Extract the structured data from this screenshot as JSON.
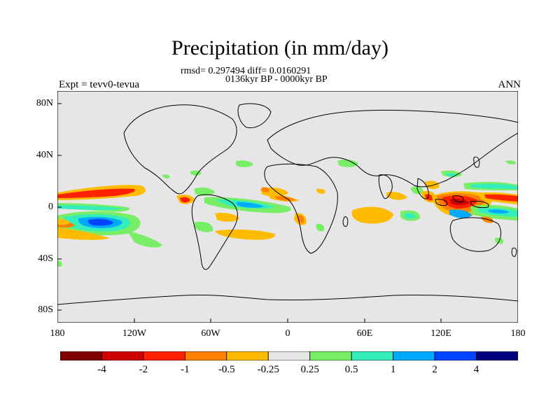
{
  "title": "Precipitation (in mm/day)",
  "subtitle_stats": "rmsd= 0.297494  diff= 0.0160291",
  "subtitle_period": "0136kyr BP - 0000kyr BP",
  "experiment": "Expt = tevv0-tevua",
  "season": "ANN",
  "lat_labels": [
    "80N",
    "40N",
    "0",
    "40S",
    "80S"
  ],
  "lon_labels": [
    "180",
    "120W",
    "60W",
    "0",
    "60E",
    "120E",
    "180"
  ],
  "colorbar": {
    "colors": [
      "#800000",
      "#cc0000",
      "#ff2200",
      "#ff7f00",
      "#ffbb00",
      "#e6e6e6",
      "#77ee66",
      "#33eebb",
      "#00aaff",
      "#0044ff",
      "#000080"
    ],
    "labels": [
      "-4",
      "-2",
      "-1",
      "-0.5",
      "-0.25",
      "0.25",
      "0.5",
      "1",
      "2",
      "4"
    ]
  }
}
